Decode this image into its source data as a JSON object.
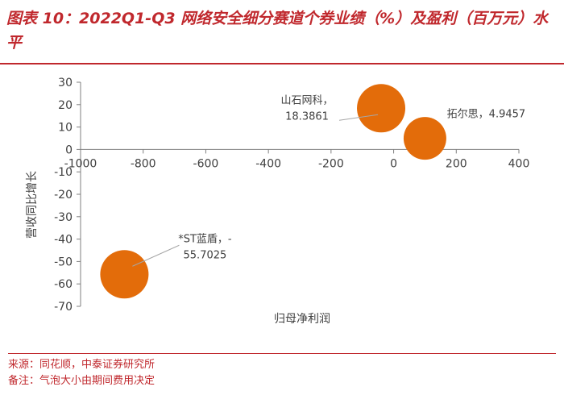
{
  "title": "图表 10：2022Q1-Q3 网络安全细分赛道个券业绩（%）及盈利（百万元）水平",
  "footnotes": {
    "source": "来源：同花顺，中泰证券研究所",
    "note": "备注：气泡大小由期间费用决定"
  },
  "colors": {
    "accent": "#c0282d",
    "bubble": "#e36c0a",
    "axis": "#7f7f7f",
    "text": "#404040"
  },
  "chart_data": {
    "type": "scatter",
    "xlabel": "归母净利润",
    "ylabel": "营收同比增长",
    "xlim": [
      -1000,
      400
    ],
    "ylim": [
      -70,
      30
    ],
    "xticks": [
      "-1000",
      "-800",
      "-600",
      "-400",
      "-200",
      "0",
      "200",
      "400"
    ],
    "yticks": [
      "30",
      "20",
      "10",
      "0",
      "-10",
      "-20",
      "-30",
      "-40",
      "-50",
      "-60",
      "-70"
    ],
    "xtick_values": [
      -1000,
      -800,
      -600,
      -400,
      -200,
      0,
      200,
      400
    ],
    "ytick_values": [
      30,
      20,
      10,
      0,
      -10,
      -20,
      -30,
      -40,
      -50,
      -60,
      -70
    ],
    "grid": false,
    "legend": "none",
    "points": [
      {
        "name": "山石网科",
        "x": -40,
        "y": 18.3861,
        "size": 1.0,
        "label_lines": [
          "山石网科，",
          "18.3861"
        ]
      },
      {
        "name": "拓尔思",
        "x": 100,
        "y": 4.9457,
        "size": 0.78,
        "label_lines": [
          "拓尔思，4.9457"
        ]
      },
      {
        "name": "*ST蓝盾",
        "x": -860,
        "y": -55.7025,
        "size": 1.0,
        "label_lines": [
          "*ST蓝盾，-",
          "55.7025"
        ]
      }
    ]
  }
}
